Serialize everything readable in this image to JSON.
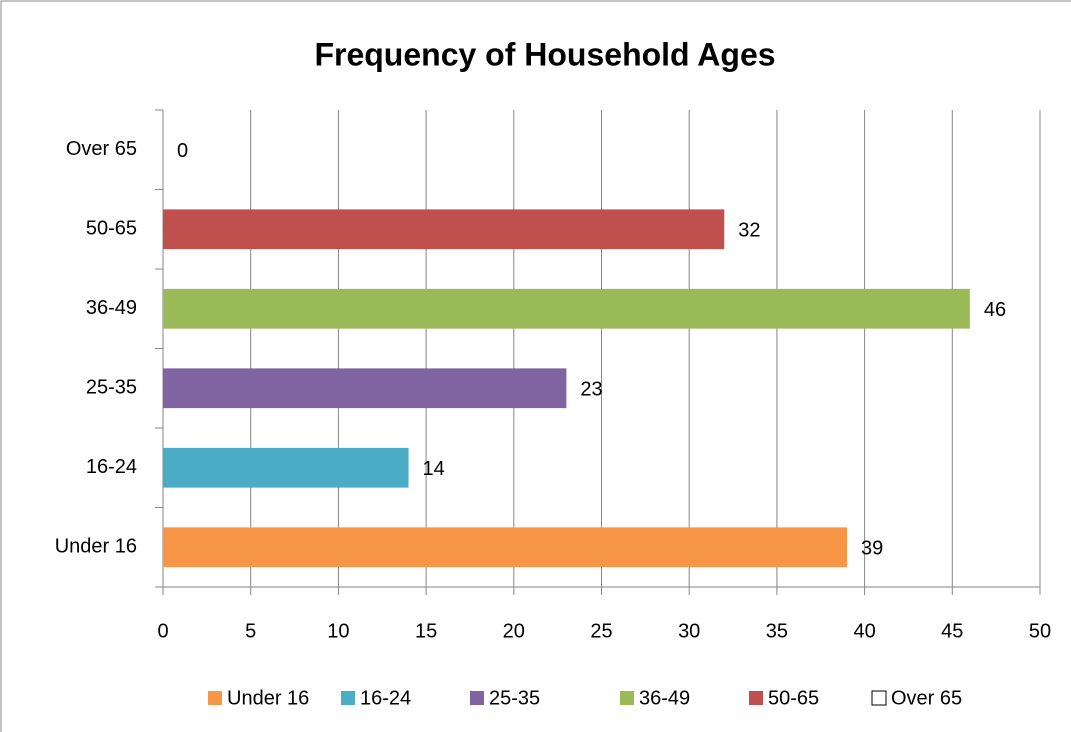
{
  "chart_data": {
    "type": "bar",
    "orientation": "horizontal",
    "title": "Frequency of Household Ages",
    "categories": [
      "Under 16",
      "16-24",
      "25-35",
      "36-49",
      "50-65",
      "Over 65"
    ],
    "values": [
      39,
      14,
      23,
      46,
      32,
      0
    ],
    "colors": [
      "#f79646",
      "#4bacc6",
      "#8064a2",
      "#9bbb59",
      "#c0504d",
      "#ffffff"
    ],
    "xlim": [
      0,
      50
    ],
    "xticks": [
      0,
      5,
      10,
      15,
      20,
      25,
      30,
      35,
      40,
      45,
      50
    ],
    "grid": true,
    "legend": "bottom"
  }
}
